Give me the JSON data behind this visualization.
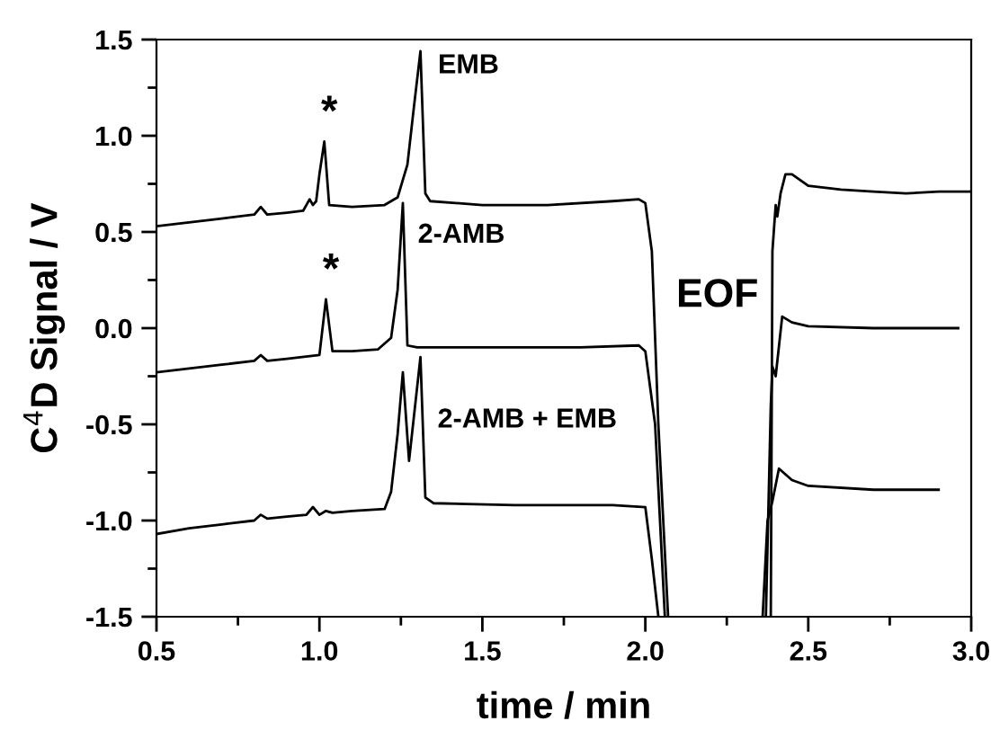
{
  "chart_data": {
    "type": "line",
    "xlabel": "time / min",
    "ylabel": "C$^{4}$D Signal / V",
    "xlim": [
      0.5,
      3.0
    ],
    "ylim": [
      -1.5,
      1.5
    ],
    "xticks": [
      0.5,
      {
        "value": 0.75,
        "label": null
      },
      {
        "value": 1,
        "label": "1.0"
      },
      {
        "value": 1.25,
        "label": null
      },
      1.5,
      {
        "value": 1.75,
        "label": null
      },
      {
        "value": 2,
        "label": "2.0"
      },
      {
        "value": 2.25,
        "label": null
      },
      2.5,
      {
        "value": 2.75,
        "label": null
      },
      {
        "value": 3,
        "label": "3.0"
      }
    ],
    "yticks": [
      -1.5,
      {
        "value": -1.25,
        "label": null
      },
      {
        "value": -1,
        "label": "-1.0"
      },
      {
        "value": -0.75,
        "label": null
      },
      -0.5,
      {
        "value": -0.25,
        "label": null
      },
      {
        "value": 0,
        "label": "0.0"
      },
      {
        "value": 0.25,
        "label": null
      },
      0.5,
      {
        "value": 0.75,
        "label": null
      },
      {
        "value": 1,
        "label": "1.0"
      },
      {
        "value": 1.25,
        "label": null
      },
      1.5
    ],
    "series": [
      {
        "color": "#000000",
        "x": [
          0.5,
          0.6,
          0.7,
          0.8,
          0.82,
          0.84,
          0.9,
          0.95,
          0.97,
          0.98,
          0.99,
          1.0,
          1.015,
          1.03,
          1.1,
          1.2,
          1.24,
          1.27,
          1.29,
          1.31,
          1.325,
          1.34,
          1.5,
          1.7,
          1.9,
          1.98,
          2.0,
          2.02,
          2.04,
          2.07,
          2.2,
          2.385,
          2.39,
          2.4,
          2.405,
          2.415,
          2.43,
          2.45,
          2.5,
          2.6,
          2.7,
          2.8,
          2.9,
          3.0
        ],
        "values": [
          0.53,
          0.55,
          0.57,
          0.59,
          0.63,
          0.59,
          0.6,
          0.61,
          0.67,
          0.64,
          0.66,
          0.8,
          0.97,
          0.64,
          0.63,
          0.64,
          0.68,
          0.85,
          1.15,
          1.44,
          0.7,
          0.66,
          0.64,
          0.64,
          0.66,
          0.67,
          0.65,
          0.4,
          -0.5,
          -1.5,
          null,
          -1.5,
          0.4,
          0.64,
          0.58,
          0.7,
          0.8,
          0.8,
          0.74,
          0.72,
          0.71,
          0.7,
          0.71,
          0.71
        ]
      },
      {
        "color": "#000000",
        "x": [
          0.5,
          0.6,
          0.7,
          0.8,
          0.82,
          0.84,
          0.9,
          1.0,
          1.02,
          1.04,
          1.1,
          1.18,
          1.22,
          1.24,
          1.256,
          1.27,
          1.3,
          1.5,
          1.8,
          1.98,
          2.0,
          2.03,
          2.06,
          2.2,
          2.37,
          2.385,
          2.39,
          2.4,
          2.42,
          2.45,
          2.5,
          2.7,
          2.96
        ],
        "values": [
          -0.23,
          -0.21,
          -0.19,
          -0.17,
          -0.14,
          -0.17,
          -0.16,
          -0.14,
          0.15,
          -0.12,
          -0.12,
          -0.11,
          -0.05,
          0.2,
          0.65,
          -0.09,
          -0.1,
          -0.1,
          -0.1,
          -0.09,
          -0.12,
          -0.5,
          -1.5,
          null,
          -1.5,
          -0.4,
          -0.2,
          -0.25,
          0.06,
          0.03,
          0.01,
          0.0,
          0.0
        ]
      },
      {
        "color": "#000000",
        "x": [
          0.5,
          0.6,
          0.7,
          0.8,
          0.82,
          0.84,
          0.9,
          0.96,
          0.98,
          1.0,
          1.02,
          1.04,
          1.1,
          1.2,
          1.22,
          1.24,
          1.256,
          1.275,
          1.31,
          1.325,
          1.35,
          1.6,
          1.9,
          2.0,
          2.02,
          2.04,
          2.2,
          2.36,
          2.375,
          2.39,
          2.41,
          2.45,
          2.5,
          2.7,
          2.9
        ],
        "values": [
          -1.07,
          -1.04,
          -1.02,
          -1.0,
          -0.97,
          -0.99,
          -0.98,
          -0.97,
          -0.93,
          -0.97,
          -0.95,
          -0.96,
          -0.95,
          -0.94,
          -0.85,
          -0.55,
          -0.23,
          -0.69,
          -0.15,
          -0.88,
          -0.91,
          -0.92,
          -0.92,
          -0.93,
          -1.2,
          -1.5,
          null,
          -1.5,
          -1.0,
          -0.9,
          -0.73,
          -0.79,
          -0.82,
          -0.84,
          -0.84
        ]
      }
    ],
    "annotations": [
      {
        "text": "EMB",
        "x": 1.31,
        "y": 1.44
      },
      {
        "text": "*",
        "x": 1.015,
        "y": 0.97
      },
      {
        "text": "2-AMB",
        "x": 1.256,
        "y": 0.65
      },
      {
        "text": "*",
        "x": 1.02,
        "y": 0.15
      },
      "2-AMB + EMB",
      "EOF"
    ]
  }
}
